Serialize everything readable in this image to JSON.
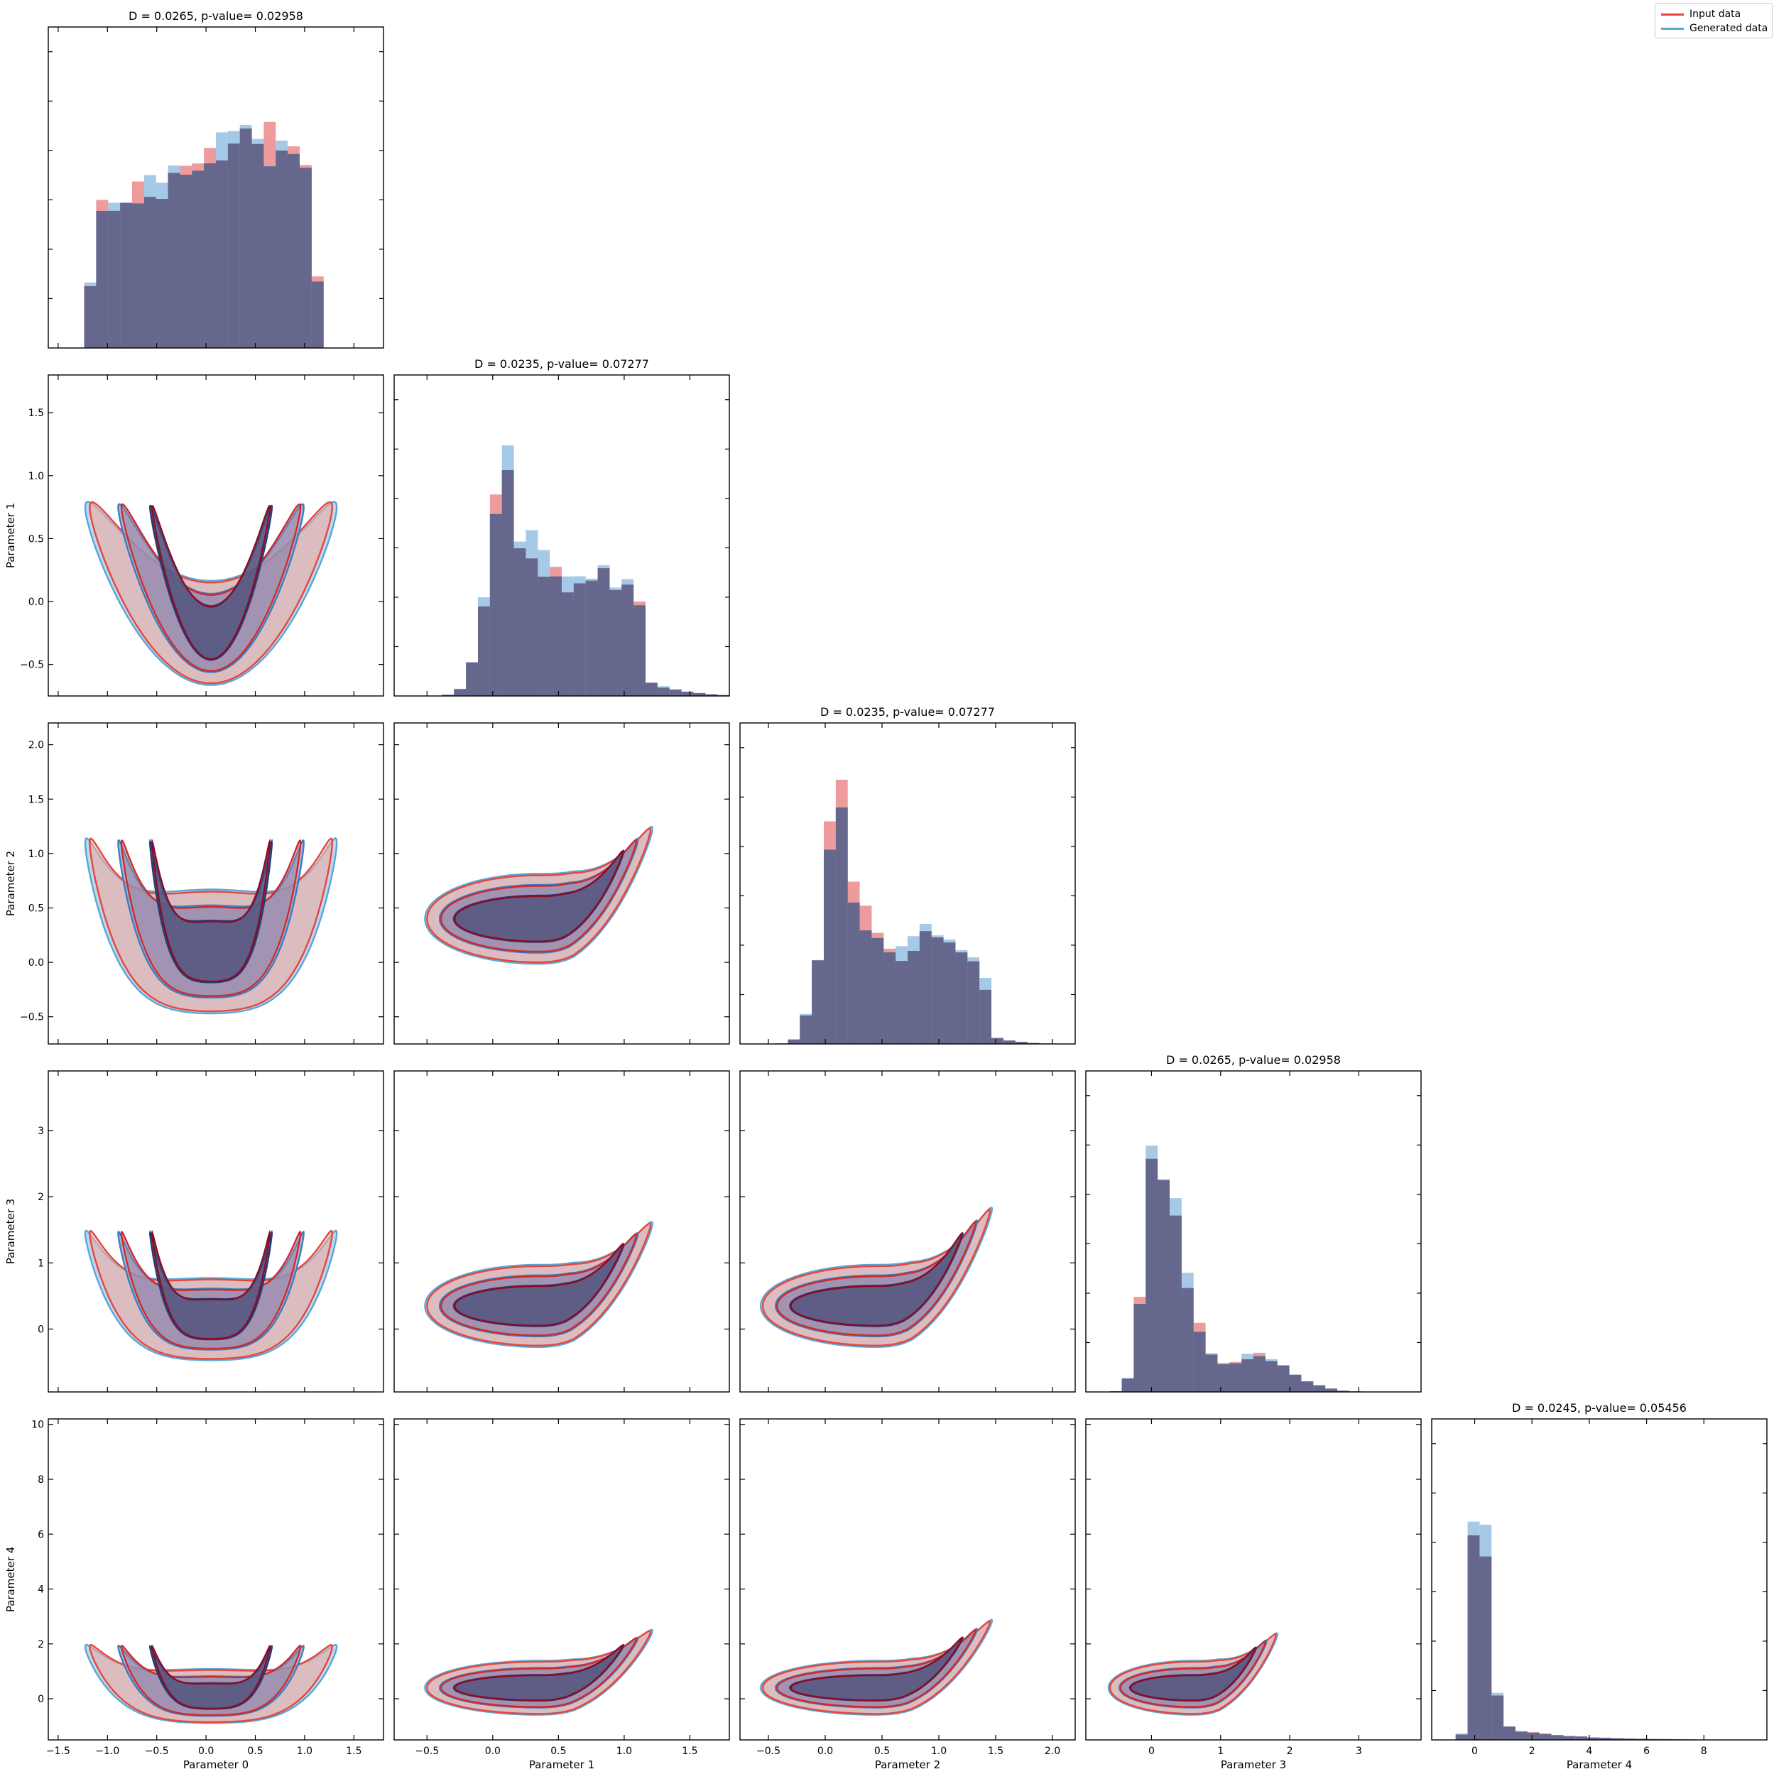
{
  "colors": {
    "input": "#e8453c",
    "input_fill": "#f4a79b",
    "input_dark": "#8a0d26",
    "generated": "#5aa6d6",
    "generated_fill": "#a6cbe8",
    "generated_dark": "#1f3f7a",
    "hist_input": "#e87a7c",
    "hist_generated": "#7fb2dc",
    "overlap": "#5a5a82"
  },
  "legend": {
    "placement": "top-right",
    "input_label": "Input data",
    "generated_label": "Generated data"
  },
  "chart_data": {
    "type": "corner",
    "parameters": [
      {
        "label": "Parameter 0",
        "range": [
          -1.6,
          1.8
        ],
        "ticks": [
          -1.5,
          -1.0,
          -0.5,
          0.0,
          0.5,
          1.0,
          1.5
        ],
        "tick_labels": [
          "−1.5",
          "−1.0",
          "−0.5",
          "0.0",
          "0.5",
          "1.0",
          "1.5"
        ],
        "hist_title": "D = 0.0265, p-value= 0.02958",
        "hist_type": "uniform",
        "hist_max": 1.22,
        "hist_mean": 0.1,
        "hist_sd": 0.62
      },
      {
        "label": "Parameter 1",
        "range": [
          -0.75,
          1.8
        ],
        "ticks": [
          -0.5,
          0.0,
          0.5,
          1.0,
          1.5
        ],
        "tick_labels": [
          "−0.5",
          "0.0",
          "0.5",
          "1.0",
          "1.5"
        ],
        "hist_title": "D = 0.0235, p-value= 0.07277",
        "hist_type": "skew",
        "hist_max": 1.22,
        "hist_mean": 0.4,
        "hist_sd": 0.38
      },
      {
        "label": "Parameter 2",
        "range": [
          -0.75,
          2.2
        ],
        "ticks": [
          -0.5,
          0.0,
          0.5,
          1.0,
          1.5,
          2.0
        ],
        "tick_labels": [
          "−0.5",
          "0.0",
          "0.5",
          "1.0",
          "1.5",
          "2.0"
        ],
        "hist_title": "D = 0.0235, p-value= 0.07277",
        "hist_type": "skew",
        "hist_max": 1.22,
        "hist_mean": 0.35,
        "hist_sd": 0.42
      },
      {
        "label": "Parameter 3",
        "range": [
          -0.95,
          3.9
        ],
        "ticks": [
          0,
          1,
          2,
          3
        ],
        "tick_labels": [
          "0",
          "1",
          "2",
          "3"
        ],
        "hist_title": "D = 0.0265, p-value= 0.02958",
        "hist_type": "peak",
        "hist_max": 1.18,
        "hist_mean": 0.1,
        "hist_sd": 0.45
      },
      {
        "label": "Parameter 4",
        "range": [
          -1.5,
          10.2
        ],
        "ticks": [
          0,
          2,
          4,
          6,
          8
        ],
        "tick_labels": [
          "0",
          "2",
          "4",
          "6",
          "8"
        ],
        "hist_title": "D = 0.0245, p-value= 0.05456",
        "hist_type": "spike",
        "hist_max": 1.15,
        "hist_mean": 0.0,
        "hist_sd": 0.6
      }
    ],
    "y_axis_ticks": [
      null,
      {
        "ticks": [
          -0.5,
          0.0,
          0.5,
          1.0,
          1.5
        ],
        "tick_labels": [
          "−0.5",
          "0.0",
          "0.5",
          "1.0",
          "1.5"
        ]
      },
      {
        "ticks": [
          -0.5,
          0.0,
          0.5,
          1.0,
          1.5,
          2.0
        ],
        "tick_labels": [
          "−0.5",
          "0.0",
          "0.5",
          "1.0",
          "1.5",
          "2.0"
        ]
      },
      {
        "ticks": [
          0,
          1,
          2,
          3
        ],
        "tick_labels": [
          "0",
          "1",
          "2",
          "3"
        ]
      },
      {
        "ticks": [
          0,
          2,
          4,
          6,
          8,
          10
        ],
        "tick_labels": [
          "0",
          "2",
          "4",
          "6",
          "8",
          "10"
        ]
      }
    ]
  }
}
